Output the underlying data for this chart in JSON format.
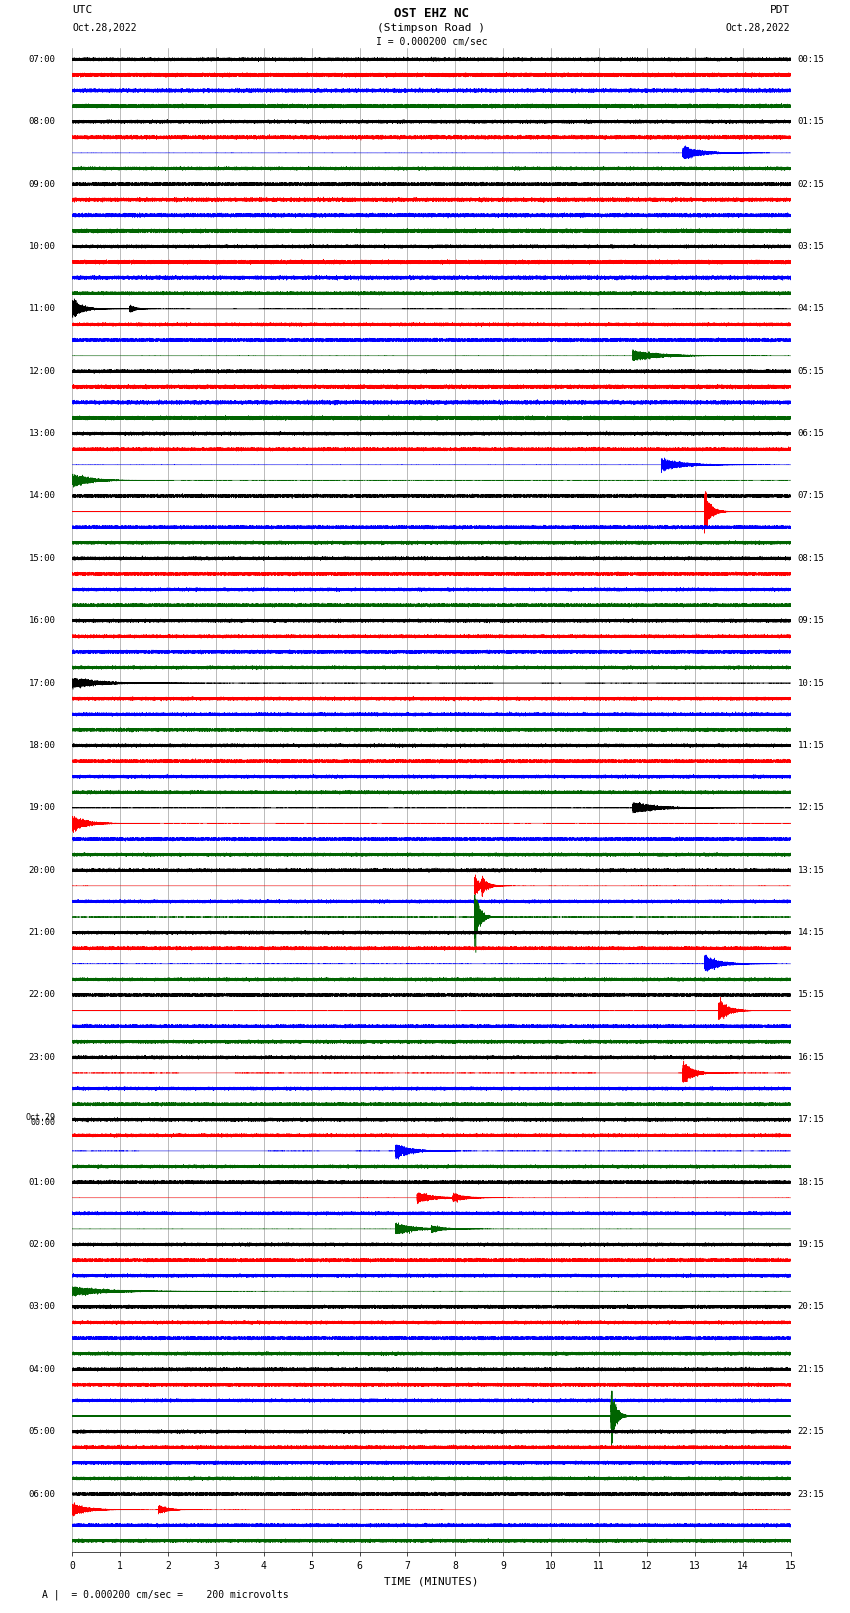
{
  "title_line1": "OST EHZ NC",
  "title_line2": "(Stimpson Road )",
  "title_line3": "I = 0.000200 cm/sec",
  "label_left_top": "UTC",
  "label_left_date": "Oct.28,2022",
  "label_right_top": "PDT",
  "label_right_date": "Oct.28,2022",
  "xlabel": "TIME (MINUTES)",
  "scale_text": "= 0.000200 cm/sec =    200 microvolts",
  "bg_color": "#ffffff",
  "grid_color_v": "#808080",
  "grid_color_h": "#000000",
  "trace_colors_per_hour": [
    "#000000",
    "#ff0000",
    "#0000ff",
    "#006400"
  ],
  "utc_hour_labels": [
    "07:00",
    "08:00",
    "09:00",
    "10:00",
    "11:00",
    "12:00",
    "13:00",
    "14:00",
    "15:00",
    "16:00",
    "17:00",
    "18:00",
    "19:00",
    "20:00",
    "21:00",
    "22:00",
    "23:00",
    "Oct.29\n00:00",
    "01:00",
    "02:00",
    "03:00",
    "04:00",
    "05:00",
    "06:00"
  ],
  "pdt_hour_labels": [
    "00:15",
    "01:15",
    "02:15",
    "03:15",
    "04:15",
    "05:15",
    "06:15",
    "07:15",
    "08:15",
    "09:15",
    "10:15",
    "11:15",
    "12:15",
    "13:15",
    "14:15",
    "15:15",
    "16:15",
    "17:15",
    "18:15",
    "19:15",
    "20:15",
    "21:15",
    "22:15",
    "23:15"
  ],
  "n_hours": 24,
  "traces_per_hour": 4,
  "n_minutes": 15,
  "noise_level": 0.03,
  "sample_rate": 100
}
